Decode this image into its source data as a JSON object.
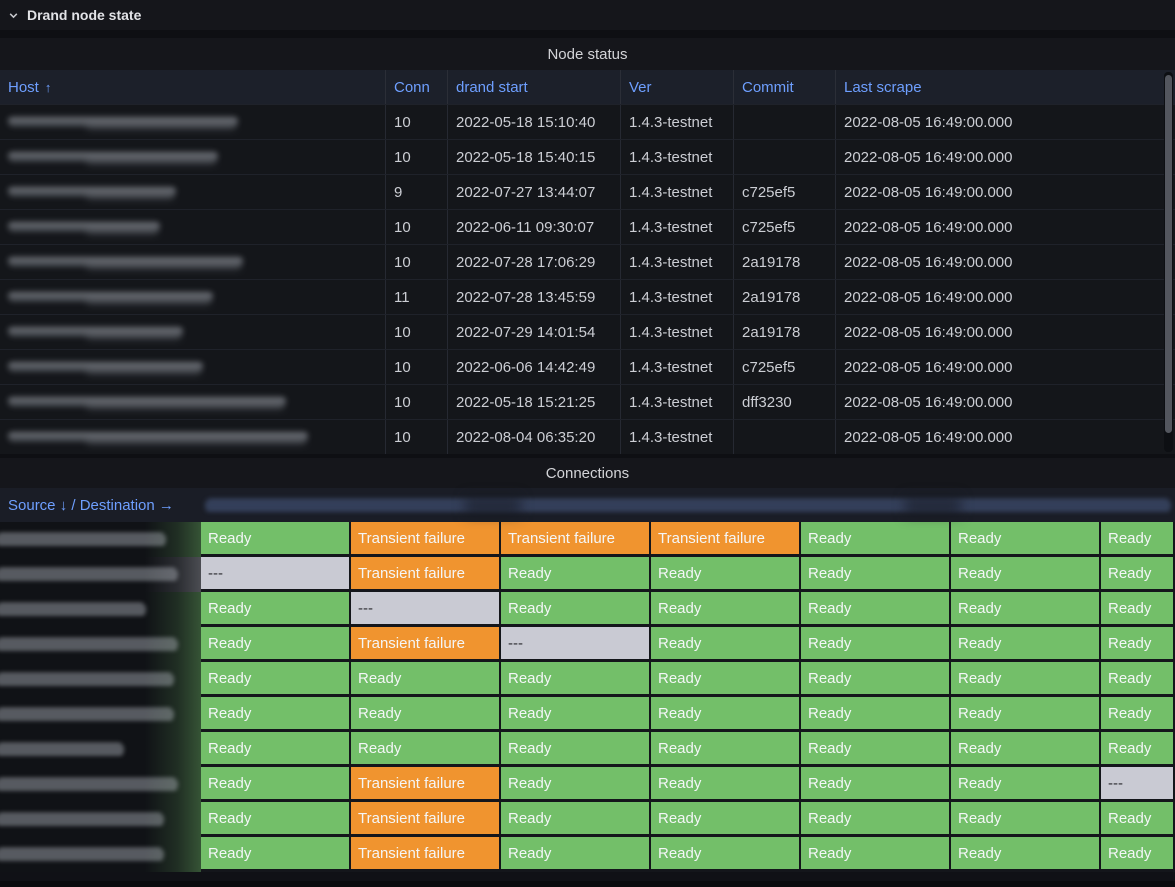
{
  "row_header": {
    "title": "Drand node state"
  },
  "node_status": {
    "title": "Node status",
    "columns": [
      "Host",
      "Conn",
      "drand start",
      "Ver",
      "Commit",
      "Last scrape"
    ],
    "sort_arrow": "↑",
    "rows": [
      {
        "host_redacted": true,
        "redacted_width": 230,
        "conn": "10",
        "drand_start": "2022-05-18 15:10:40",
        "ver": "1.4.3-testnet",
        "commit": "",
        "last_scrape": "2022-08-05 16:49:00.000"
      },
      {
        "host_redacted": true,
        "redacted_width": 210,
        "conn": "10",
        "drand_start": "2022-05-18 15:40:15",
        "ver": "1.4.3-testnet",
        "commit": "",
        "last_scrape": "2022-08-05 16:49:00.000"
      },
      {
        "host_redacted": true,
        "redacted_width": 168,
        "conn": "9",
        "drand_start": "2022-07-27 13:44:07",
        "ver": "1.4.3-testnet",
        "commit": "c725ef5",
        "last_scrape": "2022-08-05 16:49:00.000"
      },
      {
        "host_redacted": true,
        "redacted_width": 152,
        "conn": "10",
        "drand_start": "2022-06-11 09:30:07",
        "ver": "1.4.3-testnet",
        "commit": "c725ef5",
        "last_scrape": "2022-08-05 16:49:00.000"
      },
      {
        "host_redacted": true,
        "redacted_width": 235,
        "conn": "10",
        "drand_start": "2022-07-28 17:06:29",
        "ver": "1.4.3-testnet",
        "commit": "2a19178",
        "last_scrape": "2022-08-05 16:49:00.000"
      },
      {
        "host_redacted": true,
        "redacted_width": 205,
        "conn": "11",
        "drand_start": "2022-07-28 13:45:59",
        "ver": "1.4.3-testnet",
        "commit": "2a19178",
        "last_scrape": "2022-08-05 16:49:00.000"
      },
      {
        "host_redacted": true,
        "redacted_width": 175,
        "conn": "10",
        "drand_start": "2022-07-29 14:01:54",
        "ver": "1.4.3-testnet",
        "commit": "2a19178",
        "last_scrape": "2022-08-05 16:49:00.000"
      },
      {
        "host_redacted": true,
        "redacted_width": 195,
        "conn": "10",
        "drand_start": "2022-06-06 14:42:49",
        "ver": "1.4.3-testnet",
        "commit": "c725ef5",
        "last_scrape": "2022-08-05 16:49:00.000"
      },
      {
        "host_redacted": true,
        "redacted_width": 278,
        "conn": "10",
        "drand_start": "2022-05-18 15:21:25",
        "ver": "1.4.3-testnet",
        "commit": "dff3230",
        "last_scrape": "2022-08-05 16:49:00.000"
      },
      {
        "host_redacted": true,
        "redacted_width": 300,
        "conn": "10",
        "drand_start": "2022-08-04 06:35:20",
        "ver": "1.4.3-testnet",
        "commit": "",
        "last_scrape": "2022-08-05 16:49:00.000"
      }
    ]
  },
  "connections": {
    "title": "Connections",
    "corner_label": "Source ↓ / Destination →",
    "destination_headers_redacted": true,
    "statuses": {
      "ready": "Ready",
      "transient": "Transient failure",
      "na": "---"
    },
    "source_redacted_widths": [
      170,
      182,
      150,
      182,
      178,
      178,
      128,
      182,
      168,
      168
    ],
    "matrix": [
      [
        "ready",
        "transient",
        "transient",
        "transient",
        "ready",
        "ready",
        "ready"
      ],
      [
        "na",
        "transient",
        "ready",
        "ready",
        "ready",
        "ready",
        "ready"
      ],
      [
        "ready",
        "na",
        "ready",
        "ready",
        "ready",
        "ready",
        "ready"
      ],
      [
        "ready",
        "transient",
        "na",
        "ready",
        "ready",
        "ready",
        "ready"
      ],
      [
        "ready",
        "ready",
        "ready",
        "ready",
        "ready",
        "ready",
        "ready"
      ],
      [
        "ready",
        "ready",
        "ready",
        "ready",
        "ready",
        "ready",
        "ready"
      ],
      [
        "ready",
        "ready",
        "ready",
        "ready",
        "ready",
        "ready",
        "ready"
      ],
      [
        "ready",
        "transient",
        "ready",
        "ready",
        "ready",
        "ready",
        "na"
      ],
      [
        "ready",
        "transient",
        "ready",
        "ready",
        "ready",
        "ready",
        "ready"
      ],
      [
        "ready",
        "transient",
        "ready",
        "ready",
        "ready",
        "ready",
        "ready"
      ]
    ]
  },
  "colors": {
    "ready_bg": "#73BF69",
    "transient_bg": "#F0942F",
    "na_bg": "#C9CAD3",
    "header_text": "#6E9FFF",
    "page_bg": "#111217"
  }
}
